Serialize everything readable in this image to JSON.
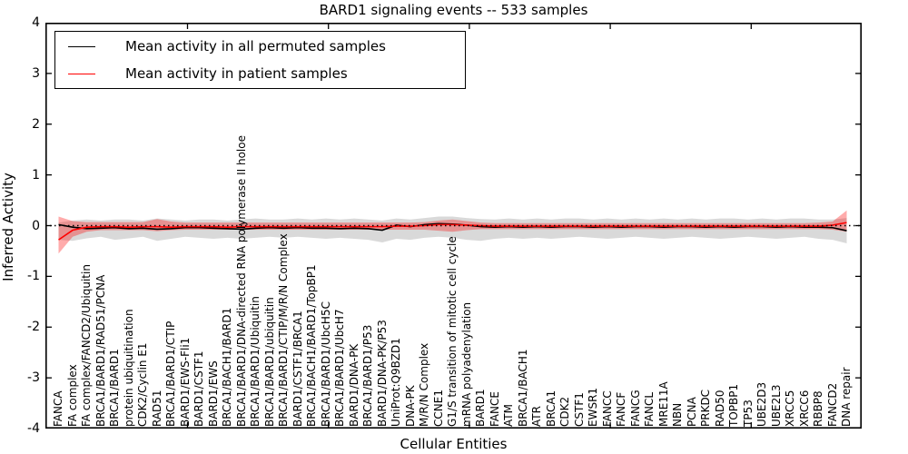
{
  "chart_data": {
    "type": "line",
    "title": "BARD1 signaling events -- 533 samples",
    "xlabel": "Cellular Entities",
    "ylabel": "Inferred Activity",
    "ylim": [
      -4,
      4
    ],
    "yticks": [
      -4,
      -3,
      -2,
      -1,
      0,
      1,
      2,
      3,
      4
    ],
    "grid": false,
    "legend_position": "upper left",
    "zero_line": {
      "style": "dotted",
      "color": "#000000",
      "y": 0
    },
    "categories": [
      "FANCA",
      "FA complex",
      "FA complex/FANCD2/Ubiquitin",
      "BRCA1/BARD1/RAD51/PCNA",
      "BRCA1/BARD1",
      "protein ubiquitination",
      "CDK2/Cyclin E1",
      "RAD51",
      "BRCA1/BARD1/CTIP",
      "BARD1/EWS-Fli1",
      "BARD1/CSTF1",
      "BARD1/EWS",
      "BRCA1/BACH1/BARD1",
      "BRCA1/BARD1/DNA-directed RNA polymerase II holoe",
      "BRCA1/BARD1/Ubiquitin",
      "BRCA1/BARD1/ubiquitin",
      "BRCA1/BARD1/CTIP/M/R/N Complex",
      "BARD1/CSTF1/BRCA1",
      "BRCA1/BACH1/BARD1/TopBP1",
      "BRCA1/BARD1/UbcH5C",
      "BRCA1/BARD1/UbcH7",
      "BARD1/DNA-PK",
      "BRCA1/BARD1/P53",
      "BARD1/DNA-PK/P53",
      "UniProt:Q9BZD1",
      "DNA-PK",
      "M/R/N Complex",
      "CCNE1",
      "G1/S transition of mitotic cell cycle",
      "mRNA polyadenylation",
      "BARD1",
      "FANCE",
      "ATM",
      "BRCA1/BACH1",
      "ATR",
      "BRCA1",
      "CDK2",
      "CSTF1",
      "EWSR1",
      "FANCC",
      "FANCF",
      "FANCG",
      "FANCL",
      "MRE11A",
      "NBN",
      "PCNA",
      "PRKDC",
      "RAD50",
      "TOPBP1",
      "TP53",
      "UBE2D3",
      "UBE2L3",
      "XRCC5",
      "XRCC6",
      "RBBP8",
      "FANCD2",
      "DNA repair"
    ],
    "series": [
      {
        "name": "Mean activity in all permuted samples",
        "color": "#000000",
        "band_color": "rgba(0,0,0,0.15)",
        "values": [
          0.02,
          -0.03,
          -0.06,
          -0.05,
          -0.04,
          -0.06,
          -0.05,
          -0.07,
          -0.06,
          -0.04,
          -0.04,
          -0.05,
          -0.06,
          -0.07,
          -0.05,
          -0.04,
          -0.05,
          -0.04,
          -0.05,
          -0.05,
          -0.06,
          -0.05,
          -0.06,
          -0.09,
          0.01,
          -0.02,
          0.02,
          0.04,
          0.03,
          0.01,
          -0.02,
          -0.03,
          -0.02,
          -0.03,
          -0.02,
          -0.03,
          -0.02,
          -0.02,
          -0.03,
          -0.02,
          -0.03,
          -0.02,
          -0.02,
          -0.03,
          -0.02,
          -0.02,
          -0.03,
          -0.02,
          -0.03,
          -0.02,
          -0.02,
          -0.03,
          -0.02,
          -0.03,
          -0.03,
          -0.04,
          -0.1
        ],
        "band_upper": [
          0.06,
          0.1,
          0.12,
          0.1,
          0.12,
          0.12,
          0.1,
          0.14,
          0.12,
          0.1,
          0.12,
          0.12,
          0.1,
          0.12,
          0.14,
          0.12,
          0.12,
          0.14,
          0.12,
          0.14,
          0.12,
          0.14,
          0.12,
          0.1,
          0.14,
          0.12,
          0.15,
          0.18,
          0.18,
          0.15,
          0.13,
          0.12,
          0.14,
          0.12,
          0.14,
          0.12,
          0.14,
          0.14,
          0.12,
          0.14,
          0.12,
          0.14,
          0.12,
          0.14,
          0.12,
          0.14,
          0.12,
          0.14,
          0.14,
          0.12,
          0.14,
          0.12,
          0.14,
          0.14,
          0.12,
          0.12,
          0.15
        ],
        "band_lower": [
          -0.28,
          -0.3,
          -0.25,
          -0.22,
          -0.28,
          -0.25,
          -0.22,
          -0.3,
          -0.26,
          -0.22,
          -0.24,
          -0.26,
          -0.24,
          -0.26,
          -0.24,
          -0.22,
          -0.24,
          -0.22,
          -0.24,
          -0.26,
          -0.24,
          -0.26,
          -0.28,
          -0.33,
          -0.26,
          -0.28,
          -0.24,
          -0.22,
          -0.24,
          -0.28,
          -0.3,
          -0.26,
          -0.24,
          -0.26,
          -0.24,
          -0.26,
          -0.24,
          -0.22,
          -0.24,
          -0.26,
          -0.24,
          -0.22,
          -0.24,
          -0.26,
          -0.24,
          -0.22,
          -0.24,
          -0.26,
          -0.24,
          -0.22,
          -0.24,
          -0.26,
          -0.24,
          -0.22,
          -0.26,
          -0.28,
          -0.35
        ]
      },
      {
        "name": "Mean activity in patient samples",
        "color": "#ff0000",
        "band_color": "rgba(255,0,0,0.33)",
        "values": [
          -0.28,
          -0.09,
          -0.03,
          -0.02,
          -0.02,
          -0.03,
          -0.02,
          -0.02,
          -0.03,
          -0.02,
          -0.02,
          -0.02,
          -0.03,
          -0.02,
          -0.02,
          -0.02,
          -0.02,
          -0.02,
          -0.02,
          -0.02,
          -0.02,
          -0.02,
          -0.02,
          -0.02,
          -0.01,
          -0.01,
          0.0,
          0.02,
          0.02,
          0.01,
          0.0,
          -0.01,
          -0.01,
          -0.01,
          -0.01,
          -0.01,
          -0.01,
          -0.01,
          -0.01,
          -0.01,
          -0.01,
          -0.01,
          -0.01,
          -0.01,
          -0.01,
          -0.01,
          -0.01,
          -0.01,
          -0.01,
          -0.01,
          -0.01,
          -0.01,
          -0.01,
          -0.01,
          -0.01,
          0.01,
          0.06
        ],
        "band_upper": [
          0.18,
          0.09,
          0.07,
          0.07,
          0.07,
          0.07,
          0.07,
          0.13,
          0.08,
          0.06,
          0.06,
          0.06,
          0.06,
          0.06,
          0.06,
          0.06,
          0.06,
          0.06,
          0.06,
          0.06,
          0.06,
          0.06,
          0.06,
          0.06,
          0.06,
          0.06,
          0.07,
          0.1,
          0.12,
          0.09,
          0.06,
          0.05,
          0.05,
          0.05,
          0.05,
          0.05,
          0.05,
          0.05,
          0.05,
          0.05,
          0.05,
          0.05,
          0.05,
          0.05,
          0.05,
          0.05,
          0.05,
          0.05,
          0.05,
          0.05,
          0.05,
          0.05,
          0.05,
          0.05,
          0.06,
          0.08,
          0.3
        ],
        "band_lower": [
          -0.55,
          -0.22,
          -0.12,
          -0.09,
          -0.09,
          -0.09,
          -0.09,
          -0.11,
          -0.09,
          -0.08,
          -0.08,
          -0.08,
          -0.08,
          -0.08,
          -0.08,
          -0.08,
          -0.08,
          -0.08,
          -0.08,
          -0.08,
          -0.08,
          -0.08,
          -0.08,
          -0.08,
          -0.08,
          -0.08,
          -0.08,
          -0.1,
          -0.12,
          -0.09,
          -0.07,
          -0.07,
          -0.07,
          -0.07,
          -0.07,
          -0.07,
          -0.07,
          -0.07,
          -0.07,
          -0.07,
          -0.07,
          -0.07,
          -0.07,
          -0.07,
          -0.07,
          -0.07,
          -0.07,
          -0.07,
          -0.07,
          -0.07,
          -0.07,
          -0.07,
          -0.07,
          -0.07,
          -0.07,
          -0.08,
          -0.12
        ]
      }
    ]
  }
}
